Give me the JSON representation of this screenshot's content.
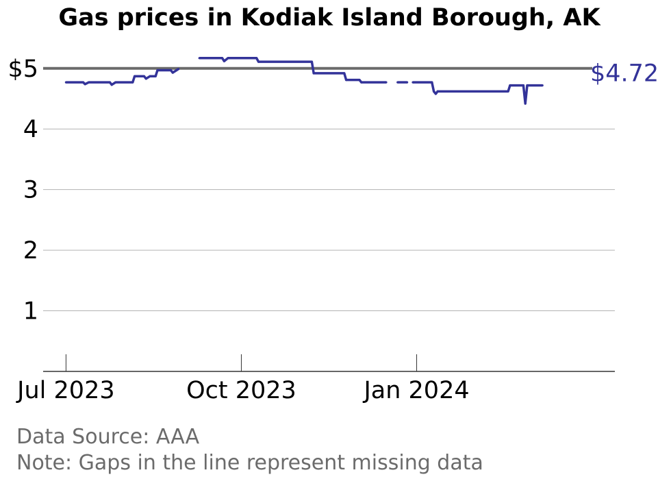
{
  "chart_data": {
    "type": "line",
    "title": "Gas prices in Kodiak Island Borough, AK",
    "xlabel": "",
    "ylabel": "",
    "ylim": [
      0,
      5.45
    ],
    "yticks": [
      {
        "value": 1,
        "label": "1"
      },
      {
        "value": 2,
        "label": "2"
      },
      {
        "value": 3,
        "label": "3"
      },
      {
        "value": 4,
        "label": "4"
      },
      {
        "value": 5,
        "label": "$5"
      }
    ],
    "xlim": [
      "2023-06-19",
      "2024-04-14"
    ],
    "xticks": [
      {
        "date": "2023-07-01",
        "label": "Jul 2023"
      },
      {
        "date": "2023-10-01",
        "label": "Oct 2023"
      },
      {
        "date": "2024-01-01",
        "label": "Jan 2024"
      }
    ],
    "reference_line": {
      "value": 5,
      "color": "#6b6b6b"
    },
    "series": [
      {
        "color": "#333399",
        "last_value_label": "$4.72",
        "segments": [
          [
            [
              "2023-07-01",
              4.77
            ],
            [
              "2023-07-10",
              4.77
            ],
            [
              "2023-07-11",
              4.74
            ],
            [
              "2023-07-13",
              4.77
            ],
            [
              "2023-07-24",
              4.77
            ],
            [
              "2023-07-25",
              4.73
            ],
            [
              "2023-07-27",
              4.77
            ],
            [
              "2023-08-05",
              4.77
            ],
            [
              "2023-08-06",
              4.87
            ],
            [
              "2023-08-11",
              4.87
            ],
            [
              "2023-08-12",
              4.83
            ],
            [
              "2023-08-14",
              4.87
            ],
            [
              "2023-08-17",
              4.87
            ],
            [
              "2023-08-18",
              4.97
            ],
            [
              "2023-08-25",
              4.97
            ],
            [
              "2023-08-26",
              4.93
            ],
            [
              "2023-08-28",
              4.97
            ],
            [
              "2023-08-29",
              4.99
            ]
          ],
          [
            [
              "2023-09-09",
              5.17
            ],
            [
              "2023-09-21",
              5.17
            ],
            [
              "2023-09-22",
              5.12
            ],
            [
              "2023-09-24",
              5.17
            ],
            [
              "2023-10-09",
              5.17
            ],
            [
              "2023-10-10",
              5.11
            ],
            [
              "2023-11-07",
              5.11
            ],
            [
              "2023-11-08",
              4.92
            ],
            [
              "2023-11-24",
              4.92
            ],
            [
              "2023-11-25",
              4.81
            ],
            [
              "2023-12-02",
              4.81
            ],
            [
              "2023-12-03",
              4.77
            ],
            [
              "2023-12-16",
              4.77
            ]
          ],
          [
            [
              "2023-12-22",
              4.77
            ],
            [
              "2023-12-27",
              4.77
            ]
          ],
          [
            [
              "2023-12-30",
              4.77
            ],
            [
              "2024-01-09",
              4.77
            ],
            [
              "2024-01-10",
              4.62
            ],
            [
              "2024-01-11",
              4.58
            ],
            [
              "2024-01-12",
              4.62
            ],
            [
              "2024-02-18",
              4.62
            ],
            [
              "2024-02-19",
              4.72
            ],
            [
              "2024-02-26",
              4.72
            ],
            [
              "2024-02-27",
              4.42
            ],
            [
              "2024-02-28",
              4.72
            ],
            [
              "2024-03-07",
              4.72
            ]
          ]
        ]
      }
    ]
  },
  "footer": {
    "source": "Data Source: AAA",
    "note": "Note: Gaps in the line represent missing data"
  }
}
